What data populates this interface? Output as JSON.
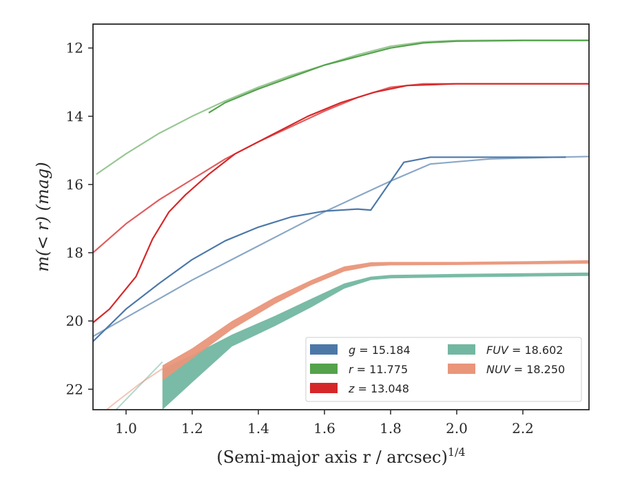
{
  "chart_data": {
    "type": "line",
    "title": "",
    "xlabel": "(Semi-major axis r / arcsec)",
    "xlabel_superscript": "1/4",
    "ylabel": "m(< r) (mag)",
    "xlim": [
      0.9,
      2.4
    ],
    "ylim": [
      22.6,
      11.3
    ],
    "y_inverted": true,
    "grid": false,
    "legend_position": "lower-right",
    "xticks": [
      "1.0",
      "1.2",
      "1.4",
      "1.6",
      "1.8",
      "2.0",
      "2.2"
    ],
    "yticks": [
      "12",
      "14",
      "16",
      "18",
      "20",
      "22"
    ],
    "series": [
      {
        "name": "g = 15.184",
        "legend_var": "g",
        "legend_value": "15.184",
        "color": "#4c78a8",
        "kind": "line",
        "lines": [
          {
            "alpha": 0.65,
            "x": [
              0.9,
              1.0,
              1.1,
              1.2,
              1.3,
              1.4,
              1.5,
              1.6,
              1.7,
              1.8,
              1.92,
              2.1,
              2.3,
              2.4
            ],
            "y": [
              20.45,
              19.9,
              19.35,
              18.8,
              18.3,
              17.8,
              17.3,
              16.8,
              16.35,
              15.9,
              15.4,
              15.25,
              15.2,
              15.18
            ]
          },
          {
            "alpha": 1.0,
            "x": [
              0.9,
              1.0,
              1.1,
              1.2,
              1.3,
              1.4,
              1.5,
              1.6,
              1.7,
              1.74,
              1.84,
              1.92,
              2.1,
              2.33
            ],
            "y": [
              20.6,
              19.65,
              18.9,
              18.2,
              17.65,
              17.25,
              16.95,
              16.78,
              16.72,
              16.75,
              15.35,
              15.2,
              15.2,
              15.2
            ]
          }
        ]
      },
      {
        "name": "r = 11.775",
        "legend_var": "r",
        "legend_value": "11.775",
        "color": "#54a24b",
        "kind": "line",
        "lines": [
          {
            "alpha": 0.6,
            "x": [
              0.91,
              1.0,
              1.1,
              1.2,
              1.3,
              1.4,
              1.5,
              1.6,
              1.7,
              1.8,
              1.9,
              2.0,
              2.2,
              2.4
            ],
            "y": [
              15.7,
              15.1,
              14.5,
              14.0,
              13.55,
              13.15,
              12.8,
              12.5,
              12.2,
              11.95,
              11.82,
              11.78,
              11.77,
              11.77
            ]
          },
          {
            "alpha": 1.0,
            "x": [
              1.25,
              1.3,
              1.4,
              1.5,
              1.6,
              1.7,
              1.8,
              1.9,
              2.0,
              2.2,
              2.4
            ],
            "y": [
              13.9,
              13.6,
              13.2,
              12.85,
              12.5,
              12.25,
              12.0,
              11.85,
              11.8,
              11.78,
              11.78
            ]
          }
        ]
      },
      {
        "name": "z = 13.048",
        "legend_var": "z",
        "legend_value": "13.048",
        "color": "#d62728",
        "kind": "line",
        "lines": [
          {
            "alpha": 0.75,
            "x": [
              0.9,
              1.0,
              1.1,
              1.2,
              1.3,
              1.4,
              1.5,
              1.6,
              1.7,
              1.8,
              1.9,
              2.0,
              2.2,
              2.4
            ],
            "y": [
              18.0,
              17.15,
              16.45,
              15.85,
              15.25,
              14.75,
              14.3,
              13.85,
              13.45,
              13.15,
              13.05,
              13.05,
              13.05,
              13.05
            ]
          },
          {
            "alpha": 1.0,
            "x": [
              0.9,
              0.95,
              1.03,
              1.08,
              1.13,
              1.18,
              1.25,
              1.33,
              1.43,
              1.55,
              1.65,
              1.75,
              1.85,
              2.0,
              2.4
            ],
            "y": [
              20.05,
              19.65,
              18.7,
              17.6,
              16.8,
              16.3,
              15.7,
              15.1,
              14.6,
              14.0,
              13.6,
              13.3,
              13.1,
              13.05,
              13.05
            ]
          }
        ]
      },
      {
        "name": "FUV = 18.602",
        "legend_var": "FUV",
        "legend_value": "18.602",
        "color": "#72b7a1",
        "kind": "band",
        "faint_line": {
          "x": [
            0.9,
            1.0,
            1.11
          ],
          "y": [
            23.3,
            22.3,
            21.2
          ]
        },
        "x": [
          1.11,
          1.2,
          1.32,
          1.45,
          1.56,
          1.66,
          1.74,
          1.8,
          2.0,
          2.2,
          2.4
        ],
        "y_low": [
          21.4,
          21.0,
          20.4,
          19.85,
          19.35,
          18.9,
          18.7,
          18.65,
          18.62,
          18.6,
          18.58
        ],
        "y_high": [
          22.6,
          21.8,
          20.75,
          20.15,
          19.6,
          19.05,
          18.8,
          18.75,
          18.72,
          18.7,
          18.68
        ]
      },
      {
        "name": "NUV = 18.250",
        "legend_var": "NUV",
        "legend_value": "18.250",
        "color": "#e9967a",
        "kind": "band",
        "faint_line": {
          "x": [
            0.88,
            0.96,
            1.04,
            1.11
          ],
          "y": [
            23.1,
            22.45,
            21.85,
            21.4
          ]
        },
        "x": [
          1.11,
          1.2,
          1.32,
          1.45,
          1.56,
          1.66,
          1.74,
          1.8,
          2.0,
          2.2,
          2.4
        ],
        "y_low": [
          21.3,
          20.8,
          20.0,
          19.3,
          18.8,
          18.4,
          18.28,
          18.27,
          18.27,
          18.25,
          18.22
        ],
        "y_high": [
          21.75,
          21.1,
          20.25,
          19.5,
          18.95,
          18.55,
          18.4,
          18.37,
          18.36,
          18.34,
          18.32
        ]
      }
    ]
  }
}
